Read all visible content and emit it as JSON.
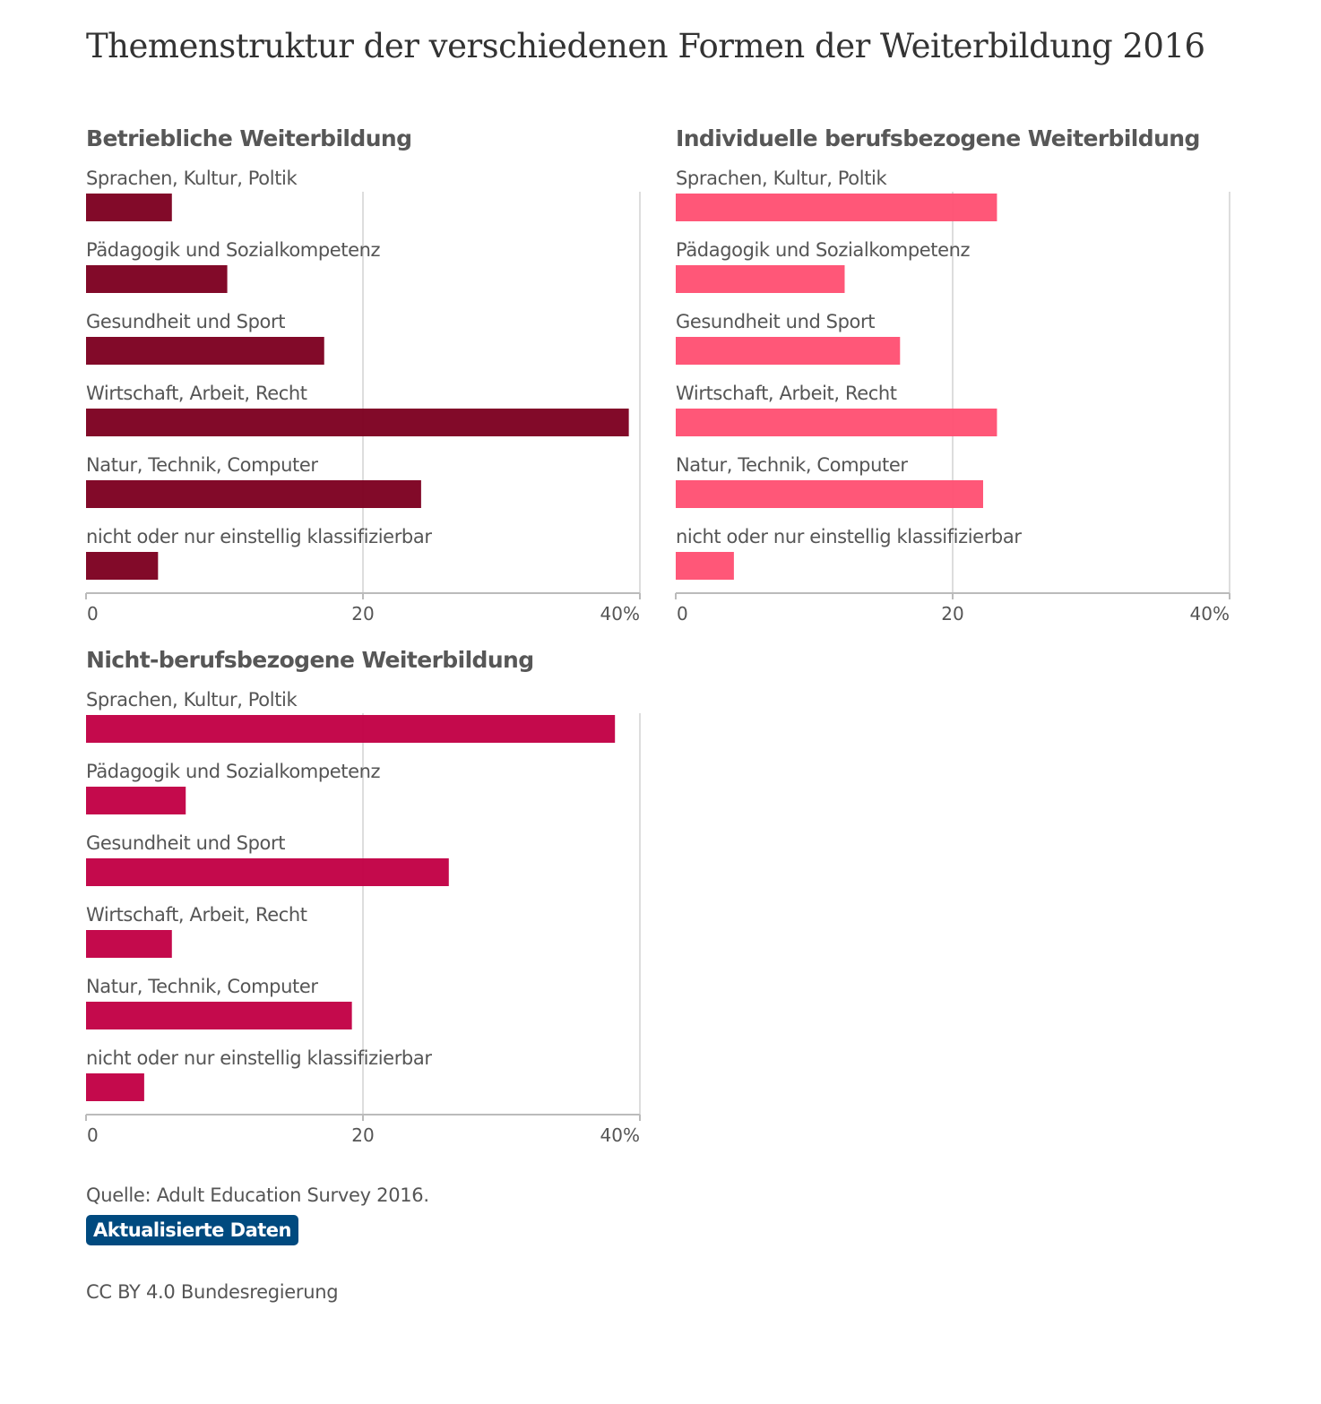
{
  "title": "Themenstruktur der verschiedenen Formen der Weiterbildung 2016",
  "source": "Quelle: Adult Education Survey 2016.",
  "updated_label": "Aktualisierte Daten",
  "license": "CC BY 4.0 Bundesregierung",
  "colors": {
    "betriebliche": "#7d0020",
    "individuelle": "#ff5073",
    "nicht_berufsbezogen": "#c20045",
    "gridline": "#dddddd",
    "axis": "#bbbbbb",
    "badge": "#004a7f"
  },
  "chart_data": [
    {
      "type": "bar",
      "orientation": "horizontal",
      "title": "Betriebliche Weiterbildung",
      "categories": [
        "Sprachen, Kultur, Poltik",
        "Pädagogik und Sozialkompetenz",
        "Gesundheit und Sport",
        "Wirtschaft, Arbeit, Recht",
        "Natur, Technik, Computer",
        "nicht oder nur einstellig klassifizierbar"
      ],
      "values": [
        6.2,
        10.2,
        17.2,
        39.2,
        24.2,
        5.2
      ],
      "xlim": [
        0,
        40
      ],
      "xticks": [
        "0",
        "20",
        "40%"
      ],
      "grid": true,
      "color": "#7d0020"
    },
    {
      "type": "bar",
      "orientation": "horizontal",
      "title": "Individuelle berufsbezogene Weiterbildung",
      "categories": [
        "Sprachen, Kultur, Poltik",
        "Pädagogik und Sozialkompetenz",
        "Gesundheit und Sport",
        "Wirtschaft, Arbeit, Recht",
        "Natur, Technik, Computer",
        "nicht oder nur einstellig klassifizierbar"
      ],
      "values": [
        23.2,
        12.2,
        16.2,
        23.2,
        22.2,
        4.2
      ],
      "xlim": [
        0,
        40
      ],
      "xticks": [
        "0",
        "20",
        "40%"
      ],
      "grid": true,
      "color": "#ff5073"
    },
    {
      "type": "bar",
      "orientation": "horizontal",
      "title": "Nicht-berufsbezogene Weiterbildung",
      "categories": [
        "Sprachen, Kultur, Poltik",
        "Pädagogik und Sozialkompetenz",
        "Gesundheit und Sport",
        "Wirtschaft, Arbeit, Recht",
        "Natur, Technik, Computer",
        "nicht oder nur einstellig klassifizierbar"
      ],
      "values": [
        38.2,
        7.2,
        26.2,
        6.2,
        19.2,
        4.2
      ],
      "xlim": [
        0,
        40
      ],
      "xticks": [
        "0",
        "20",
        "40%"
      ],
      "grid": true,
      "color": "#c20045"
    }
  ]
}
